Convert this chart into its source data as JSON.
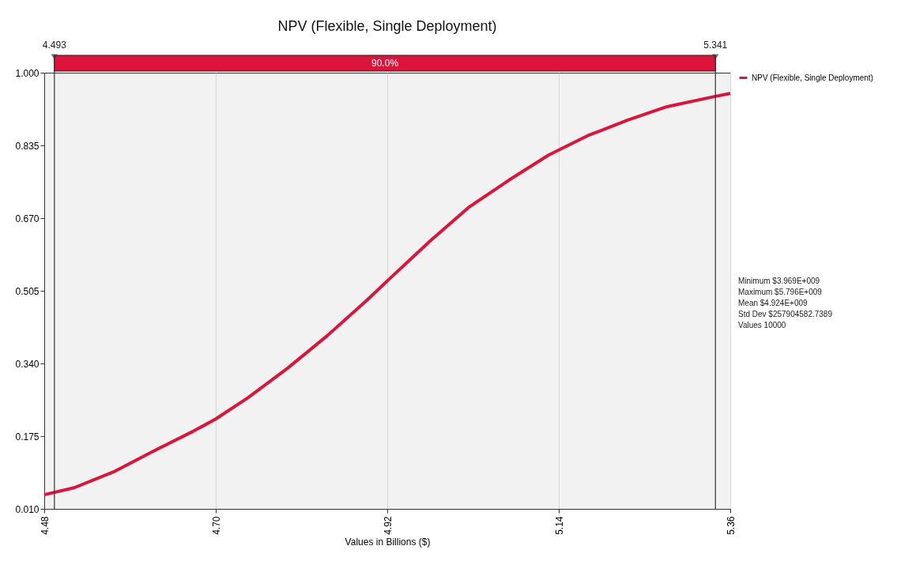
{
  "chart_data": {
    "type": "line",
    "title": "NPV (Flexible, Single Deployment)",
    "xlabel": "Values in Billions ($)",
    "x": [
      4.48,
      4.5185,
      4.569,
      4.62,
      4.671,
      4.7,
      4.742,
      4.792,
      4.843,
      4.893,
      4.924,
      4.975,
      5.025,
      5.076,
      5.127,
      5.177,
      5.228,
      5.279,
      5.34,
      5.36
    ],
    "series": [
      {
        "name": "NPV (Flexible, Single Deployment)",
        "color": "#dc143c",
        "values": [
          0.042,
          0.058,
          0.094,
          0.141,
          0.186,
          0.214,
          0.263,
          0.329,
          0.403,
          0.482,
          0.534,
          0.618,
          0.695,
          0.756,
          0.813,
          0.857,
          0.892,
          0.923,
          0.946,
          0.953
        ]
      }
    ],
    "xlim": [
      4.48,
      5.36
    ],
    "xticks": [
      4.48,
      {
        "value": 4.7,
        "label": "4.70"
      },
      4.92,
      5.14,
      5.36
    ],
    "ylim": [
      0.01,
      1.0
    ],
    "yticks": [
      {
        "value": 0.01,
        "label": "0.010"
      },
      {
        "value": 0.175,
        "label": "0.175"
      },
      {
        "value": 0.34,
        "label": "0.340"
      },
      {
        "value": 0.505,
        "label": "0.505"
      },
      {
        "value": 0.67,
        "label": "0.670"
      },
      {
        "value": 0.835,
        "label": "0.835"
      },
      {
        "value": 1.0,
        "label": "1.000"
      }
    ],
    "grid": "x",
    "legend": "right",
    "marker": "none",
    "line_style": "solid",
    "ref_lines": [
      {
        "axis": "x",
        "value": 4.493,
        "label": "4.493"
      },
      {
        "axis": "x",
        "value": 5.341,
        "label": "5.341"
      }
    ],
    "annotations": [
      "90.0%",
      "Minimum $3.969E+009",
      "Maximum $5.796E+009",
      "Mean $4.924E+009",
      "Std Dev $257904582.7389",
      "Values 10000"
    ]
  }
}
